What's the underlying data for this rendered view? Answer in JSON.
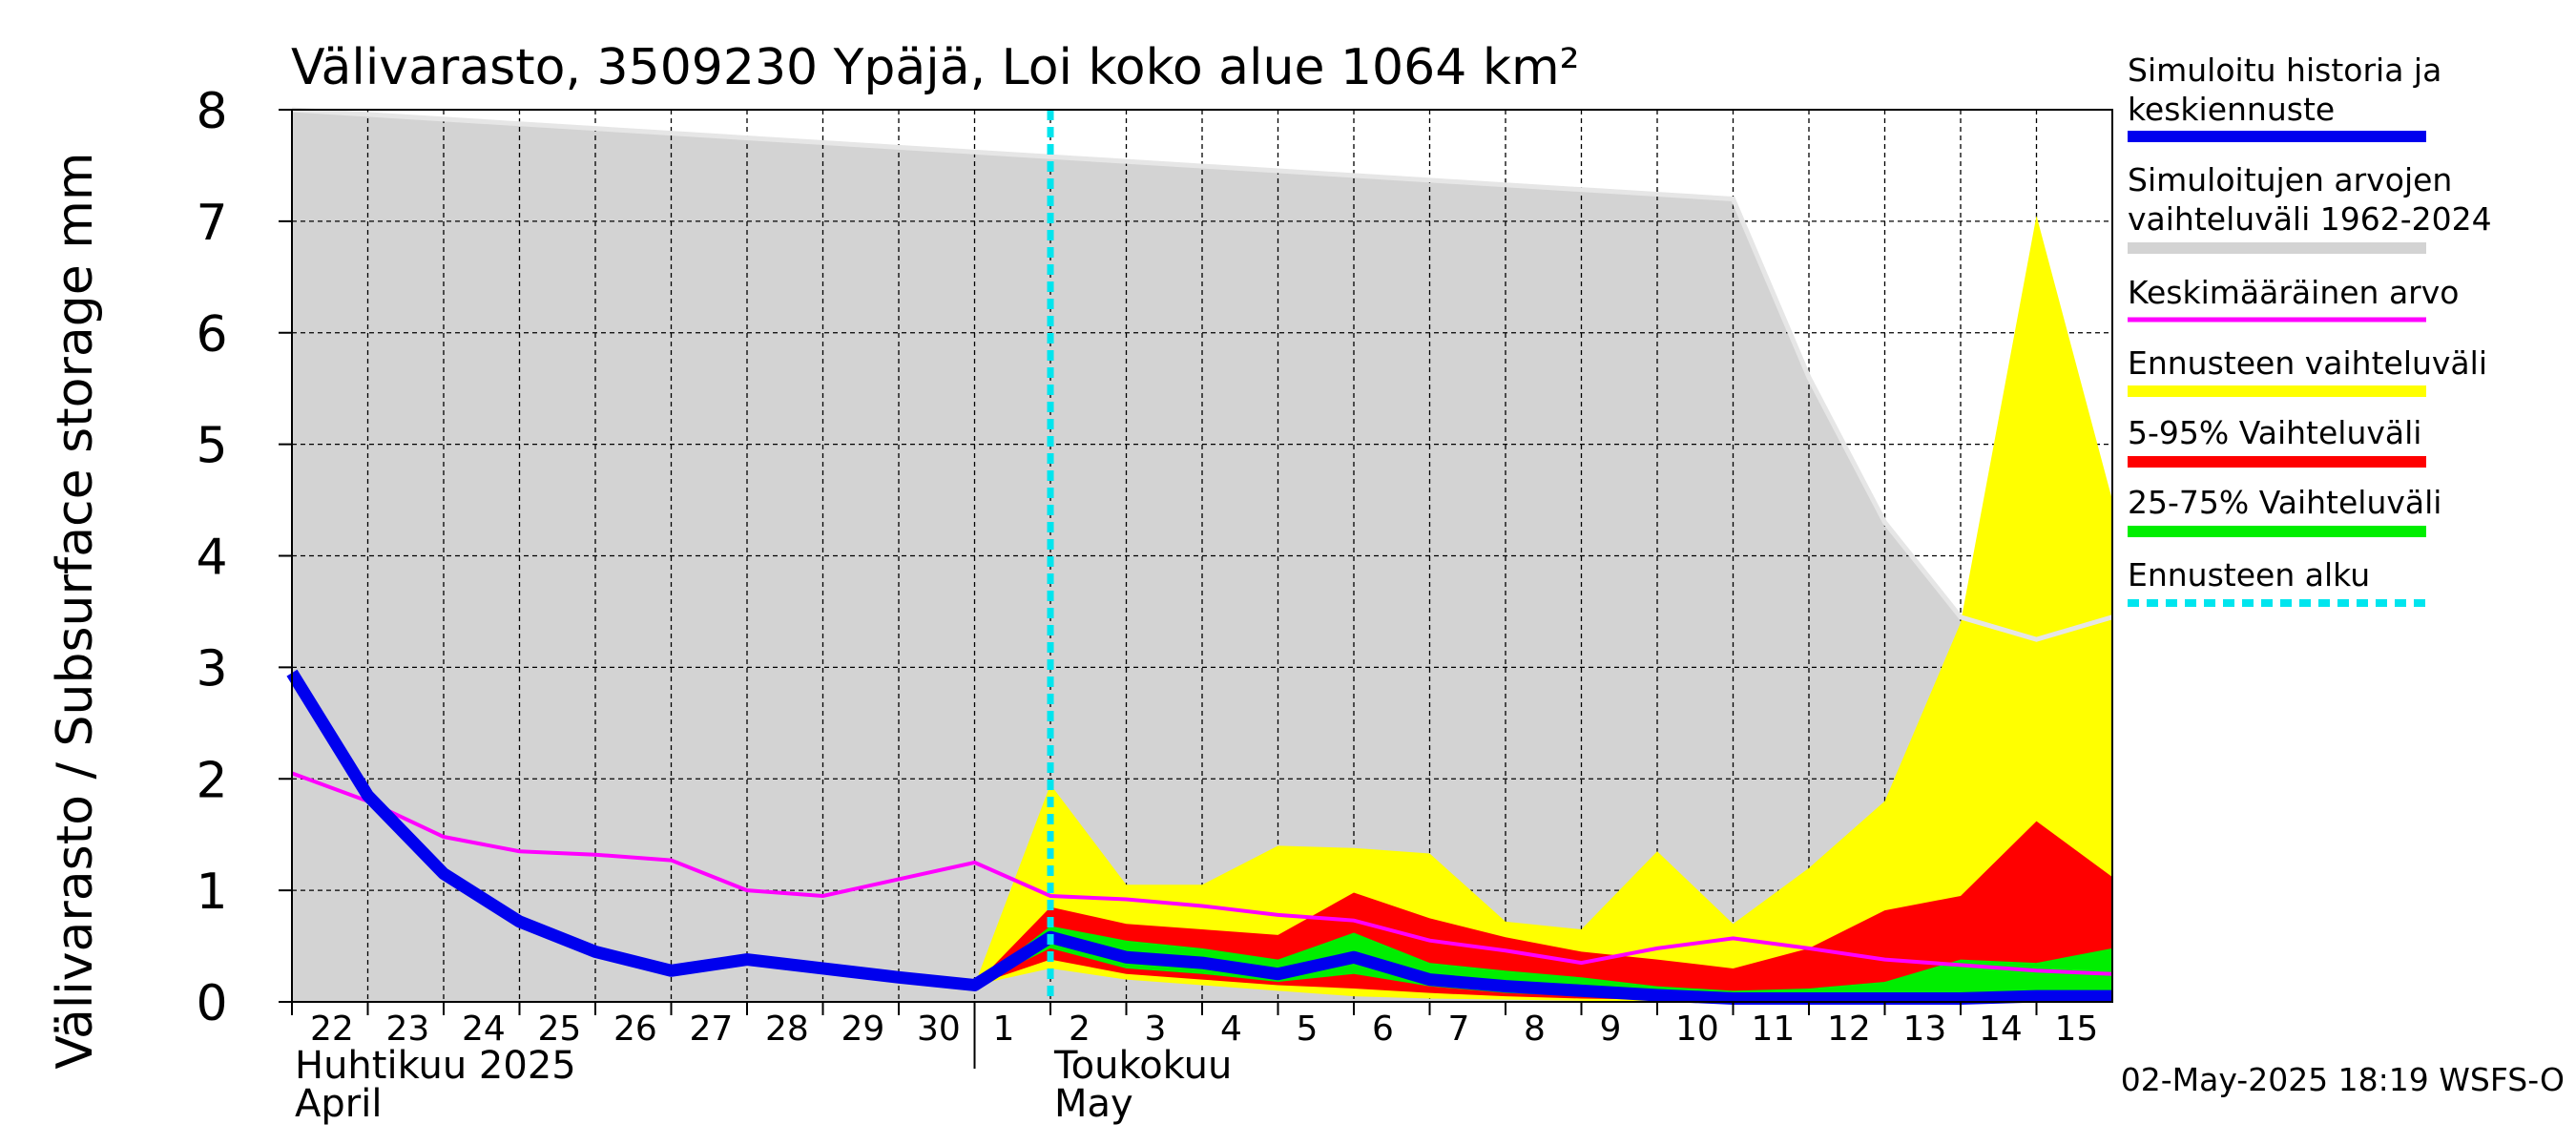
{
  "chart_data": {
    "type": "area",
    "title": "Välivarasto, 3509230 Ypäjä, Loi koko alue 1064 km²",
    "ylabel": "Välivarasto / Subsurface storage  mm",
    "ylim": [
      0,
      8
    ],
    "yticks": [
      0,
      1,
      2,
      3,
      4,
      5,
      6,
      7,
      8
    ],
    "grid": true,
    "legend_position": "right",
    "x_day_labels": [
      "22",
      "23",
      "24",
      "25",
      "26",
      "27",
      "28",
      "29",
      "30",
      "1",
      "2",
      "3",
      "4",
      "5",
      "6",
      "7",
      "8",
      "9",
      "10",
      "11",
      "12",
      "13",
      "14",
      "15"
    ],
    "month_labels": [
      {
        "line1": "Huhtikuu  2025",
        "line2": "April"
      },
      {
        "line1": "Toukokuu",
        "line2": "May"
      }
    ],
    "forecast_start": "2025-05-02",
    "timestamp": "02-May-2025 18:19 WSFS-O",
    "colors": {
      "history": "#0000ee",
      "range": "#d3d3d3",
      "mean": "#ff00ff",
      "forecast_range": "#ffff00",
      "p5_95": "#ff0000",
      "p25_75": "#00ee00",
      "forecast_start": "#00e5ee"
    },
    "series": [
      {
        "name": "Simuloitu historia ja keskiennuste",
        "legend_line1": "Simuloitu historia ja",
        "legend_line2": "keskiennuste",
        "x": [
          "2025-04-22",
          "2025-04-23",
          "2025-04-24",
          "2025-04-25",
          "2025-04-26",
          "2025-04-27",
          "2025-04-28",
          "2025-04-29",
          "2025-04-30",
          "2025-05-01",
          "2025-05-02",
          "2025-05-03",
          "2025-05-04",
          "2025-05-05",
          "2025-05-06",
          "2025-05-07",
          "2025-05-08",
          "2025-05-09",
          "2025-05-10",
          "2025-05-11",
          "2025-05-12",
          "2025-05-13",
          "2025-05-14",
          "2025-05-15",
          "2025-05-16"
        ],
        "values": [
          2.95,
          1.85,
          1.15,
          0.72,
          0.45,
          0.28,
          0.38,
          0.3,
          0.22,
          0.15,
          0.58,
          0.4,
          0.35,
          0.25,
          0.4,
          0.2,
          0.14,
          0.1,
          0.06,
          0.03,
          0.03,
          0.03,
          0.03,
          0.05,
          0.05
        ]
      },
      {
        "name": "Simuloitujen arvojen vaihteluväli 1962-2024",
        "legend_line1": "Simuloitujen arvojen",
        "legend_line2": "vaihteluväli 1962-2024",
        "x": [
          "2025-04-22",
          "2025-05-11",
          "2025-05-12",
          "2025-05-13",
          "2025-05-14",
          "2025-05-15",
          "2025-05-16"
        ],
        "upper": [
          8.0,
          7.2,
          5.6,
          4.3,
          3.45,
          3.25,
          3.45
        ],
        "lower": [
          0,
          0,
          0,
          0,
          0,
          0,
          0
        ]
      },
      {
        "name": "Keskimääräinen arvo",
        "legend_line1": "Keskimääräinen arvo",
        "x": [
          "2025-04-22",
          "2025-04-23",
          "2025-04-24",
          "2025-04-25",
          "2025-04-26",
          "2025-04-27",
          "2025-04-28",
          "2025-04-29",
          "2025-04-30",
          "2025-05-01",
          "2025-05-02",
          "2025-05-03",
          "2025-05-04",
          "2025-05-05",
          "2025-05-06",
          "2025-05-07",
          "2025-05-08",
          "2025-05-09",
          "2025-05-10",
          "2025-05-11",
          "2025-05-12",
          "2025-05-13",
          "2025-05-14",
          "2025-05-15",
          "2025-05-16"
        ],
        "values": [
          2.05,
          1.8,
          1.48,
          1.35,
          1.32,
          1.27,
          1.0,
          0.95,
          1.1,
          1.25,
          0.95,
          0.92,
          0.86,
          0.78,
          0.73,
          0.55,
          0.46,
          0.35,
          0.48,
          0.57,
          0.48,
          0.38,
          0.33,
          0.28,
          0.25
        ]
      },
      {
        "name": "Ennusteen vaihteluväli",
        "legend_line1": "Ennusteen vaihteluväli",
        "x": [
          "2025-05-01",
          "2025-05-02",
          "2025-05-03",
          "2025-05-04",
          "2025-05-05",
          "2025-05-06",
          "2025-05-07",
          "2025-05-08",
          "2025-05-09",
          "2025-05-10",
          "2025-05-11",
          "2025-05-12",
          "2025-05-13",
          "2025-05-14",
          "2025-05-15",
          "2025-05-16"
        ],
        "upper": [
          0.15,
          1.95,
          1.05,
          1.05,
          1.4,
          1.38,
          1.33,
          0.72,
          0.65,
          1.35,
          0.7,
          1.2,
          1.8,
          3.4,
          7.05,
          4.5
        ],
        "lower": [
          0.15,
          0.3,
          0.2,
          0.15,
          0.1,
          0.05,
          0.03,
          0.02,
          0.01,
          0.0,
          0.0,
          0.0,
          0.0,
          0.0,
          0.0,
          0.0
        ]
      },
      {
        "name": "5-95% Vaihteluväli",
        "legend_line1": "5-95% Vaihteluväli",
        "x": [
          "2025-05-01",
          "2025-05-02",
          "2025-05-03",
          "2025-05-04",
          "2025-05-05",
          "2025-05-06",
          "2025-05-07",
          "2025-05-08",
          "2025-05-09",
          "2025-05-10",
          "2025-05-11",
          "2025-05-12",
          "2025-05-13",
          "2025-05-14",
          "2025-05-15",
          "2025-05-16"
        ],
        "upper": [
          0.15,
          0.85,
          0.7,
          0.65,
          0.6,
          0.98,
          0.75,
          0.58,
          0.45,
          0.38,
          0.3,
          0.48,
          0.82,
          0.95,
          1.62,
          1.12
        ],
        "lower": [
          0.15,
          0.38,
          0.25,
          0.2,
          0.15,
          0.12,
          0.08,
          0.05,
          0.03,
          0.02,
          0.01,
          0.01,
          0.01,
          0.01,
          0.02,
          0.02
        ]
      },
      {
        "name": "25-75% Vaihteluväli",
        "legend_line1": "25-75% Vaihteluväli",
        "x": [
          "2025-05-01",
          "2025-05-02",
          "2025-05-03",
          "2025-05-04",
          "2025-05-05",
          "2025-05-06",
          "2025-05-07",
          "2025-05-08",
          "2025-05-09",
          "2025-05-10",
          "2025-05-11",
          "2025-05-12",
          "2025-05-13",
          "2025-05-14",
          "2025-05-15",
          "2025-05-16"
        ],
        "upper": [
          0.15,
          0.68,
          0.55,
          0.48,
          0.38,
          0.62,
          0.35,
          0.28,
          0.22,
          0.14,
          0.1,
          0.12,
          0.18,
          0.38,
          0.35,
          0.48
        ],
        "lower": [
          0.15,
          0.48,
          0.3,
          0.25,
          0.18,
          0.25,
          0.14,
          0.08,
          0.05,
          0.03,
          0.02,
          0.02,
          0.02,
          0.02,
          0.03,
          0.03
        ]
      },
      {
        "name": "Ennusteen alku",
        "legend_line1": "Ennusteen alku"
      }
    ]
  }
}
